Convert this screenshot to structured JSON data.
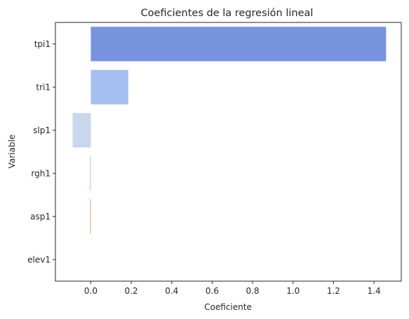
{
  "chart_data": {
    "type": "bar",
    "orientation": "horizontal",
    "title": "Coeficientes de la regresión lineal",
    "xlabel": "Coeficiente",
    "ylabel": "Variable",
    "categories": [
      "tpi1",
      "tri1",
      "slp1",
      "rgh1",
      "asp1",
      "elev1"
    ],
    "values": [
      1.46,
      0.185,
      -0.09,
      -0.005,
      -0.004,
      0.0
    ],
    "colors": [
      "#7893de",
      "#a6bff3",
      "#cad6ec",
      "#e8d0c4",
      "#f0a48c",
      "#d75445"
    ],
    "xlim": [
      -0.175,
      1.535
    ],
    "xticks": [
      0.0,
      0.2,
      0.4,
      0.6,
      0.8,
      1.0,
      1.2,
      1.4
    ],
    "xtick_labels": [
      "0.0",
      "0.2",
      "0.4",
      "0.6",
      "0.8",
      "1.0",
      "1.2",
      "1.4"
    ],
    "grid": false,
    "legend": false
  }
}
